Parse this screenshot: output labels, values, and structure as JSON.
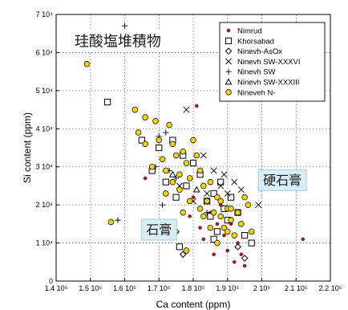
{
  "chart_data": {
    "type": "scatter",
    "title": "",
    "xlabel": "Ca content (ppm)",
    "ylabel": "Si content (ppm)",
    "xlim": [
      140000,
      220000
    ],
    "ylim": [
      0,
      70000
    ],
    "x_ticks": [
      140000,
      150000,
      160000,
      170000,
      180000,
      190000,
      200000,
      210000,
      220000
    ],
    "y_ticks": [
      0,
      10000,
      20000,
      30000,
      40000,
      50000,
      60000,
      70000
    ],
    "x_tick_labels": [
      "1.4 10⁵",
      "1.5 10⁵",
      "1.6 10⁵",
      "1.7 10⁵",
      "1.8 10⁵",
      "1.9 10⁵",
      "2 10⁵",
      "2.1 10⁵",
      "2.2 10⁵"
    ],
    "y_tick_labels": [
      "0",
      "1 10⁴",
      "2 10⁴",
      "3 10⁴",
      "4 10⁴",
      "5 10⁴",
      "6 10⁴",
      "7 10⁴"
    ],
    "grid": true,
    "legend_position": "top-right",
    "series": [
      {
        "name": "Nimrud",
        "marker": "dot",
        "color": "#a01c1c",
        "points": [
          [
            166000,
            27000
          ],
          [
            181000,
            46000
          ],
          [
            180000,
            22000
          ],
          [
            182000,
            14000
          ],
          [
            183000,
            11000
          ],
          [
            185000,
            18000
          ],
          [
            186000,
            7000
          ],
          [
            188000,
            20000
          ],
          [
            189000,
            12000
          ],
          [
            190000,
            8000
          ],
          [
            191000,
            15000
          ],
          [
            192000,
            5000
          ],
          [
            193000,
            10000
          ],
          [
            194000,
            7000
          ],
          [
            195000,
            4000
          ],
          [
            212000,
            11000
          ],
          [
            179000,
            17000
          ],
          [
            187000,
            15000
          ]
        ]
      },
      {
        "name": "Khorsabad",
        "marker": "square",
        "color": "#000000",
        "points": [
          [
            155000,
            47000
          ],
          [
            165000,
            37000
          ],
          [
            168000,
            29000
          ],
          [
            170000,
            35000
          ],
          [
            172000,
            26000
          ],
          [
            174000,
            37000
          ],
          [
            175000,
            22000
          ],
          [
            177000,
            33000
          ],
          [
            178000,
            25000
          ],
          [
            180000,
            31000
          ],
          [
            182000,
            28000
          ],
          [
            184000,
            21000
          ],
          [
            185000,
            17000
          ],
          [
            186000,
            23000
          ],
          [
            187000,
            13000
          ],
          [
            188000,
            26000
          ],
          [
            189000,
            19000
          ],
          [
            190000,
            16000
          ],
          [
            191000,
            22000
          ],
          [
            193000,
            18000
          ],
          [
            195000,
            12000
          ],
          [
            197000,
            10000
          ],
          [
            186000,
            11000
          ],
          [
            176000,
            9000
          ]
        ]
      },
      {
        "name": "Ninevh-AsOx",
        "marker": "diamond",
        "color": "#000000",
        "points": [
          [
            175000,
            13000
          ],
          [
            177000,
            7000
          ],
          [
            193000,
            9000
          ],
          [
            195000,
            6000
          ]
        ]
      },
      {
        "name": "Ninevh SW-XXXVI",
        "marker": "x",
        "color": "#000000",
        "points": [
          [
            178000,
            45000
          ],
          [
            183000,
            33000
          ],
          [
            184000,
            23000
          ],
          [
            186000,
            29000
          ],
          [
            189000,
            28000
          ],
          [
            190000,
            23000
          ],
          [
            192000,
            26000
          ],
          [
            194000,
            24000
          ],
          [
            199000,
            20000
          ],
          [
            176000,
            25000
          ],
          [
            180000,
            21000
          ],
          [
            188000,
            25000
          ]
        ]
      },
      {
        "name": "Ninevh SW",
        "marker": "plus",
        "color": "#000000",
        "points": [
          [
            160000,
            67000
          ],
          [
            170000,
            38000
          ],
          [
            172000,
            39000
          ],
          [
            173000,
            29000
          ],
          [
            158000,
            16000
          ],
          [
            169000,
            30000
          ],
          [
            171000,
            20000
          ],
          [
            175000,
            27000
          ],
          [
            184000,
            18000
          ]
        ]
      },
      {
        "name": "Ninevh SW-XXXIII",
        "marker": "triangle",
        "color": "#000000",
        "points": [
          [
            174000,
            28000
          ],
          [
            181000,
            24000
          ]
        ]
      },
      {
        "name": "Nineveh N-",
        "marker": "yellow",
        "color": "#f2d400",
        "points": [
          [
            148000,
            62000
          ],
          [
            149000,
            57000
          ],
          [
            156000,
            15500
          ],
          [
            163000,
            45000
          ],
          [
            164000,
            39000
          ],
          [
            166000,
            43000
          ],
          [
            166000,
            36000
          ],
          [
            169000,
            42000
          ],
          [
            170000,
            37000
          ],
          [
            171000,
            32000
          ],
          [
            172000,
            29000
          ],
          [
            173000,
            41000
          ],
          [
            174000,
            36000
          ],
          [
            175000,
            33000
          ],
          [
            176000,
            28000
          ],
          [
            177000,
            34000
          ],
          [
            178000,
            31000
          ],
          [
            179000,
            27000
          ],
          [
            180000,
            37000
          ],
          [
            181000,
            33000
          ],
          [
            182000,
            29000
          ],
          [
            183000,
            25000
          ],
          [
            184000,
            21000
          ],
          [
            185000,
            26000
          ],
          [
            186000,
            18000
          ],
          [
            187000,
            22000
          ],
          [
            188000,
            17000
          ],
          [
            189000,
            14000
          ],
          [
            190000,
            19000
          ],
          [
            191000,
            16000
          ],
          [
            192000,
            12000
          ],
          [
            193000,
            18000
          ],
          [
            194000,
            15000
          ],
          [
            195000,
            22000
          ],
          [
            196000,
            20000
          ],
          [
            197000,
            13000
          ],
          [
            168000,
            30000
          ],
          [
            172000,
            23000
          ],
          [
            176000,
            24000
          ],
          [
            179000,
            21000
          ],
          [
            182000,
            19000
          ],
          [
            185000,
            14000
          ],
          [
            178000,
            8000
          ],
          [
            187000,
            10000
          ],
          [
            190000,
            13000
          ],
          [
            174000,
            26000
          ],
          [
            183000,
            17000
          ],
          [
            188000,
            21000
          ],
          [
            191000,
            19000
          ],
          [
            177000,
            18000
          ]
        ]
      }
    ],
    "annotations": [
      {
        "text": "珪酸塩堆積物",
        "x": 158000,
        "y": 63000
      },
      {
        "text": "硬石膏",
        "x": 206000,
        "y": 26500
      },
      {
        "text": "石膏",
        "x": 170000,
        "y": 13500
      }
    ]
  }
}
